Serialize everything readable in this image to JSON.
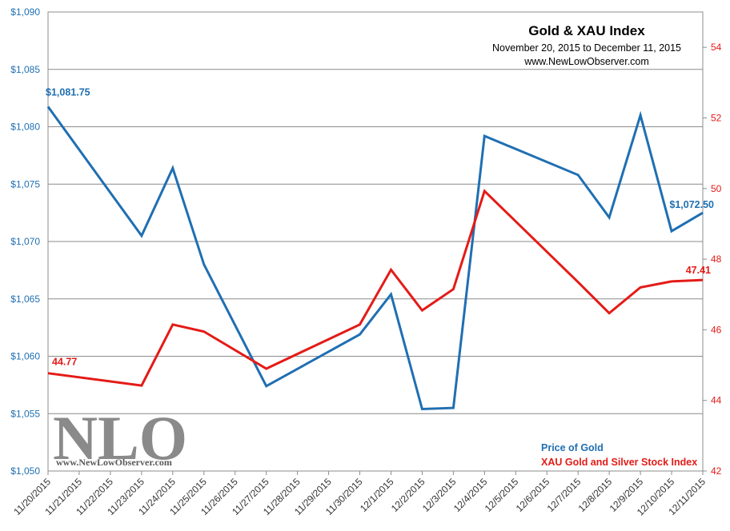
{
  "chart_data": {
    "type": "line",
    "title": "Gold & XAU Index",
    "subtitle": "November 20, 2015  to December 11, 2015",
    "source": "www.NewLowObserver.com",
    "categories": [
      "11/20/2015",
      "11/21/2015",
      "11/22/2015",
      "11/23/2015",
      "11/24/2015",
      "11/25/2015",
      "11/26/2015",
      "11/27/2015",
      "11/28/2015",
      "11/29/2015",
      "11/30/2015",
      "12/1/2015",
      "12/2/2015",
      "12/3/2015",
      "12/4/2015",
      "12/5/2015",
      "12/6/2015",
      "12/7/2015",
      "12/8/2015",
      "12/9/2015",
      "12/10/2015",
      "12/11/2015"
    ],
    "y_left": {
      "ticks": [
        "$1,050",
        "$1,055",
        "$1,060",
        "$1,065",
        "$1,070",
        "$1,075",
        "$1,080",
        "$1,085",
        "$1,090"
      ],
      "ylim": [
        1050,
        1090
      ]
    },
    "y_right": {
      "ticks": [
        "42",
        "44",
        "46",
        "48",
        "50",
        "52",
        "54"
      ],
      "ylim": [
        42,
        55
      ]
    },
    "gridlines": true,
    "legend_position": "bottom-right",
    "series": [
      {
        "name": "Price of Gold",
        "axis": "left",
        "color": "#1f6fb2",
        "points": [
          {
            "x": "11/20/2015",
            "y": 1081.75
          },
          {
            "x": "11/23/2015",
            "y": 1070.5
          },
          {
            "x": "11/24/2015",
            "y": 1076.4
          },
          {
            "x": "11/25/2015",
            "y": 1068.0
          },
          {
            "x": "11/27/2015",
            "y": 1057.4
          },
          {
            "x": "11/30/2015",
            "y": 1061.9
          },
          {
            "x": "12/1/2015",
            "y": 1065.4
          },
          {
            "x": "12/2/2015",
            "y": 1055.4
          },
          {
            "x": "12/3/2015",
            "y": 1055.5
          },
          {
            "x": "12/4/2015",
            "y": 1079.2
          },
          {
            "x": "12/7/2015",
            "y": 1075.8
          },
          {
            "x": "12/8/2015",
            "y": 1072.1
          },
          {
            "x": "12/9/2015",
            "y": 1081.0
          },
          {
            "x": "12/10/2015",
            "y": 1070.9
          },
          {
            "x": "12/11/2015",
            "y": 1072.5
          }
        ],
        "first_label": "$1,081.75",
        "last_label": "$1,072.50"
      },
      {
        "name": "XAU Gold and Silver Stock Index",
        "axis": "right",
        "color": "#e41b17",
        "points": [
          {
            "x": "11/20/2015",
            "y": 44.77
          },
          {
            "x": "11/23/2015",
            "y": 44.42
          },
          {
            "x": "11/24/2015",
            "y": 46.15
          },
          {
            "x": "11/25/2015",
            "y": 45.95
          },
          {
            "x": "11/27/2015",
            "y": 44.9
          },
          {
            "x": "11/30/2015",
            "y": 46.15
          },
          {
            "x": "12/1/2015",
            "y": 47.7
          },
          {
            "x": "12/2/2015",
            "y": 46.55
          },
          {
            "x": "12/3/2015",
            "y": 47.15
          },
          {
            "x": "12/4/2015",
            "y": 49.93
          },
          {
            "x": "12/7/2015",
            "y": 47.35
          },
          {
            "x": "12/8/2015",
            "y": 46.47
          },
          {
            "x": "12/9/2015",
            "y": 47.2
          },
          {
            "x": "12/10/2015",
            "y": 47.37
          },
          {
            "x": "12/11/2015",
            "y": 47.41
          }
        ],
        "first_label": "44.77",
        "last_label": "47.41"
      }
    ]
  },
  "watermark": {
    "text": "NLO",
    "url": "www.NewLowObserver.com"
  }
}
